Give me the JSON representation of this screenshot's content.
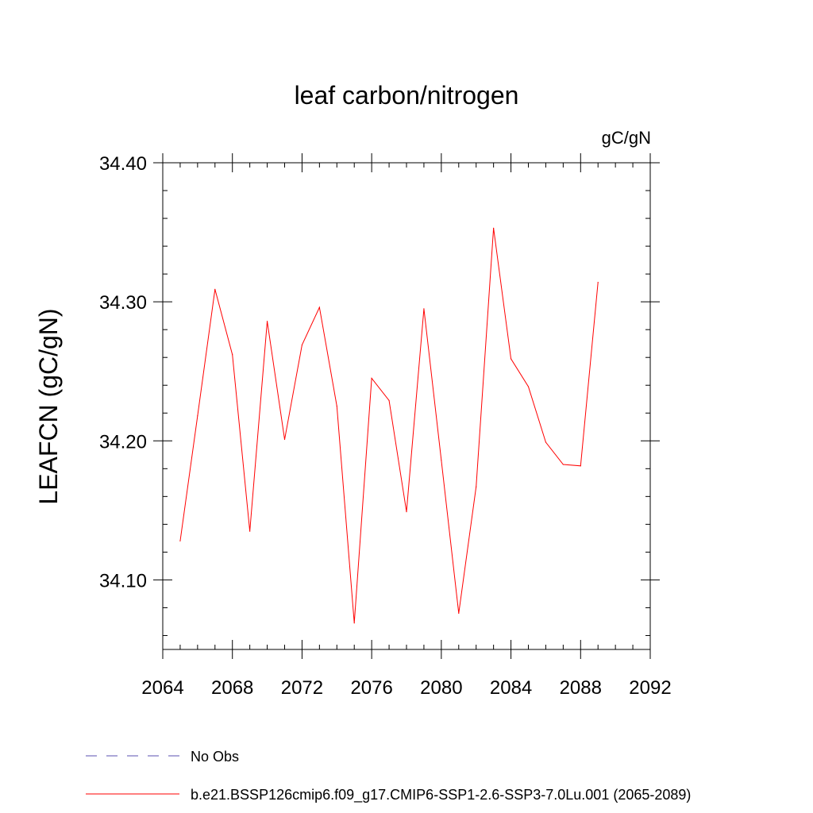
{
  "chart_data": {
    "type": "line",
    "title": "leaf carbon/nitrogen",
    "units_label": "gC/gN",
    "ylabel": "LEAFCN  (gC/gN)",
    "xlabel": "",
    "xlim": [
      2064,
      2092
    ],
    "ylim": [
      34.05,
      34.4
    ],
    "xticks": [
      2064,
      2068,
      2072,
      2076,
      2080,
      2084,
      2088,
      2092
    ],
    "yticks": [
      34.1,
      34.2,
      34.3,
      34.4
    ],
    "ytick_labels": [
      "34.10",
      "34.20",
      "34.30",
      "34.40"
    ],
    "grid": false,
    "legend_position": "bottom",
    "series": [
      {
        "name": "b.e21.BSSP126cmip6.f09_g17.CMIP6-SSP1-2.6-SSP3-7.0Lu.001 (2065-2089)",
        "color": "#ff0000",
        "style": "solid",
        "x": [
          2065,
          2066,
          2067,
          2068,
          2069,
          2070,
          2071,
          2072,
          2073,
          2074,
          2075,
          2076,
          2077,
          2078,
          2079,
          2080,
          2081,
          2082,
          2083,
          2084,
          2085,
          2086,
          2087,
          2088,
          2089
        ],
        "y": [
          34.128,
          34.218,
          34.309,
          34.262,
          34.135,
          34.286,
          34.201,
          34.269,
          34.296,
          34.225,
          34.069,
          34.245,
          34.229,
          34.149,
          34.295,
          34.186,
          34.076,
          34.167,
          34.353,
          34.259,
          34.239,
          34.199,
          34.183,
          34.182,
          34.314
        ]
      }
    ],
    "legend": [
      {
        "label": "No Obs",
        "color": "#5a4fb0",
        "style": "dashed"
      },
      {
        "label": "b.e21.BSSP126cmip6.f09_g17.CMIP6-SSP1-2.6-SSP3-7.0Lu.001 (2065-2089)",
        "color": "#ff0000",
        "style": "solid"
      }
    ]
  }
}
